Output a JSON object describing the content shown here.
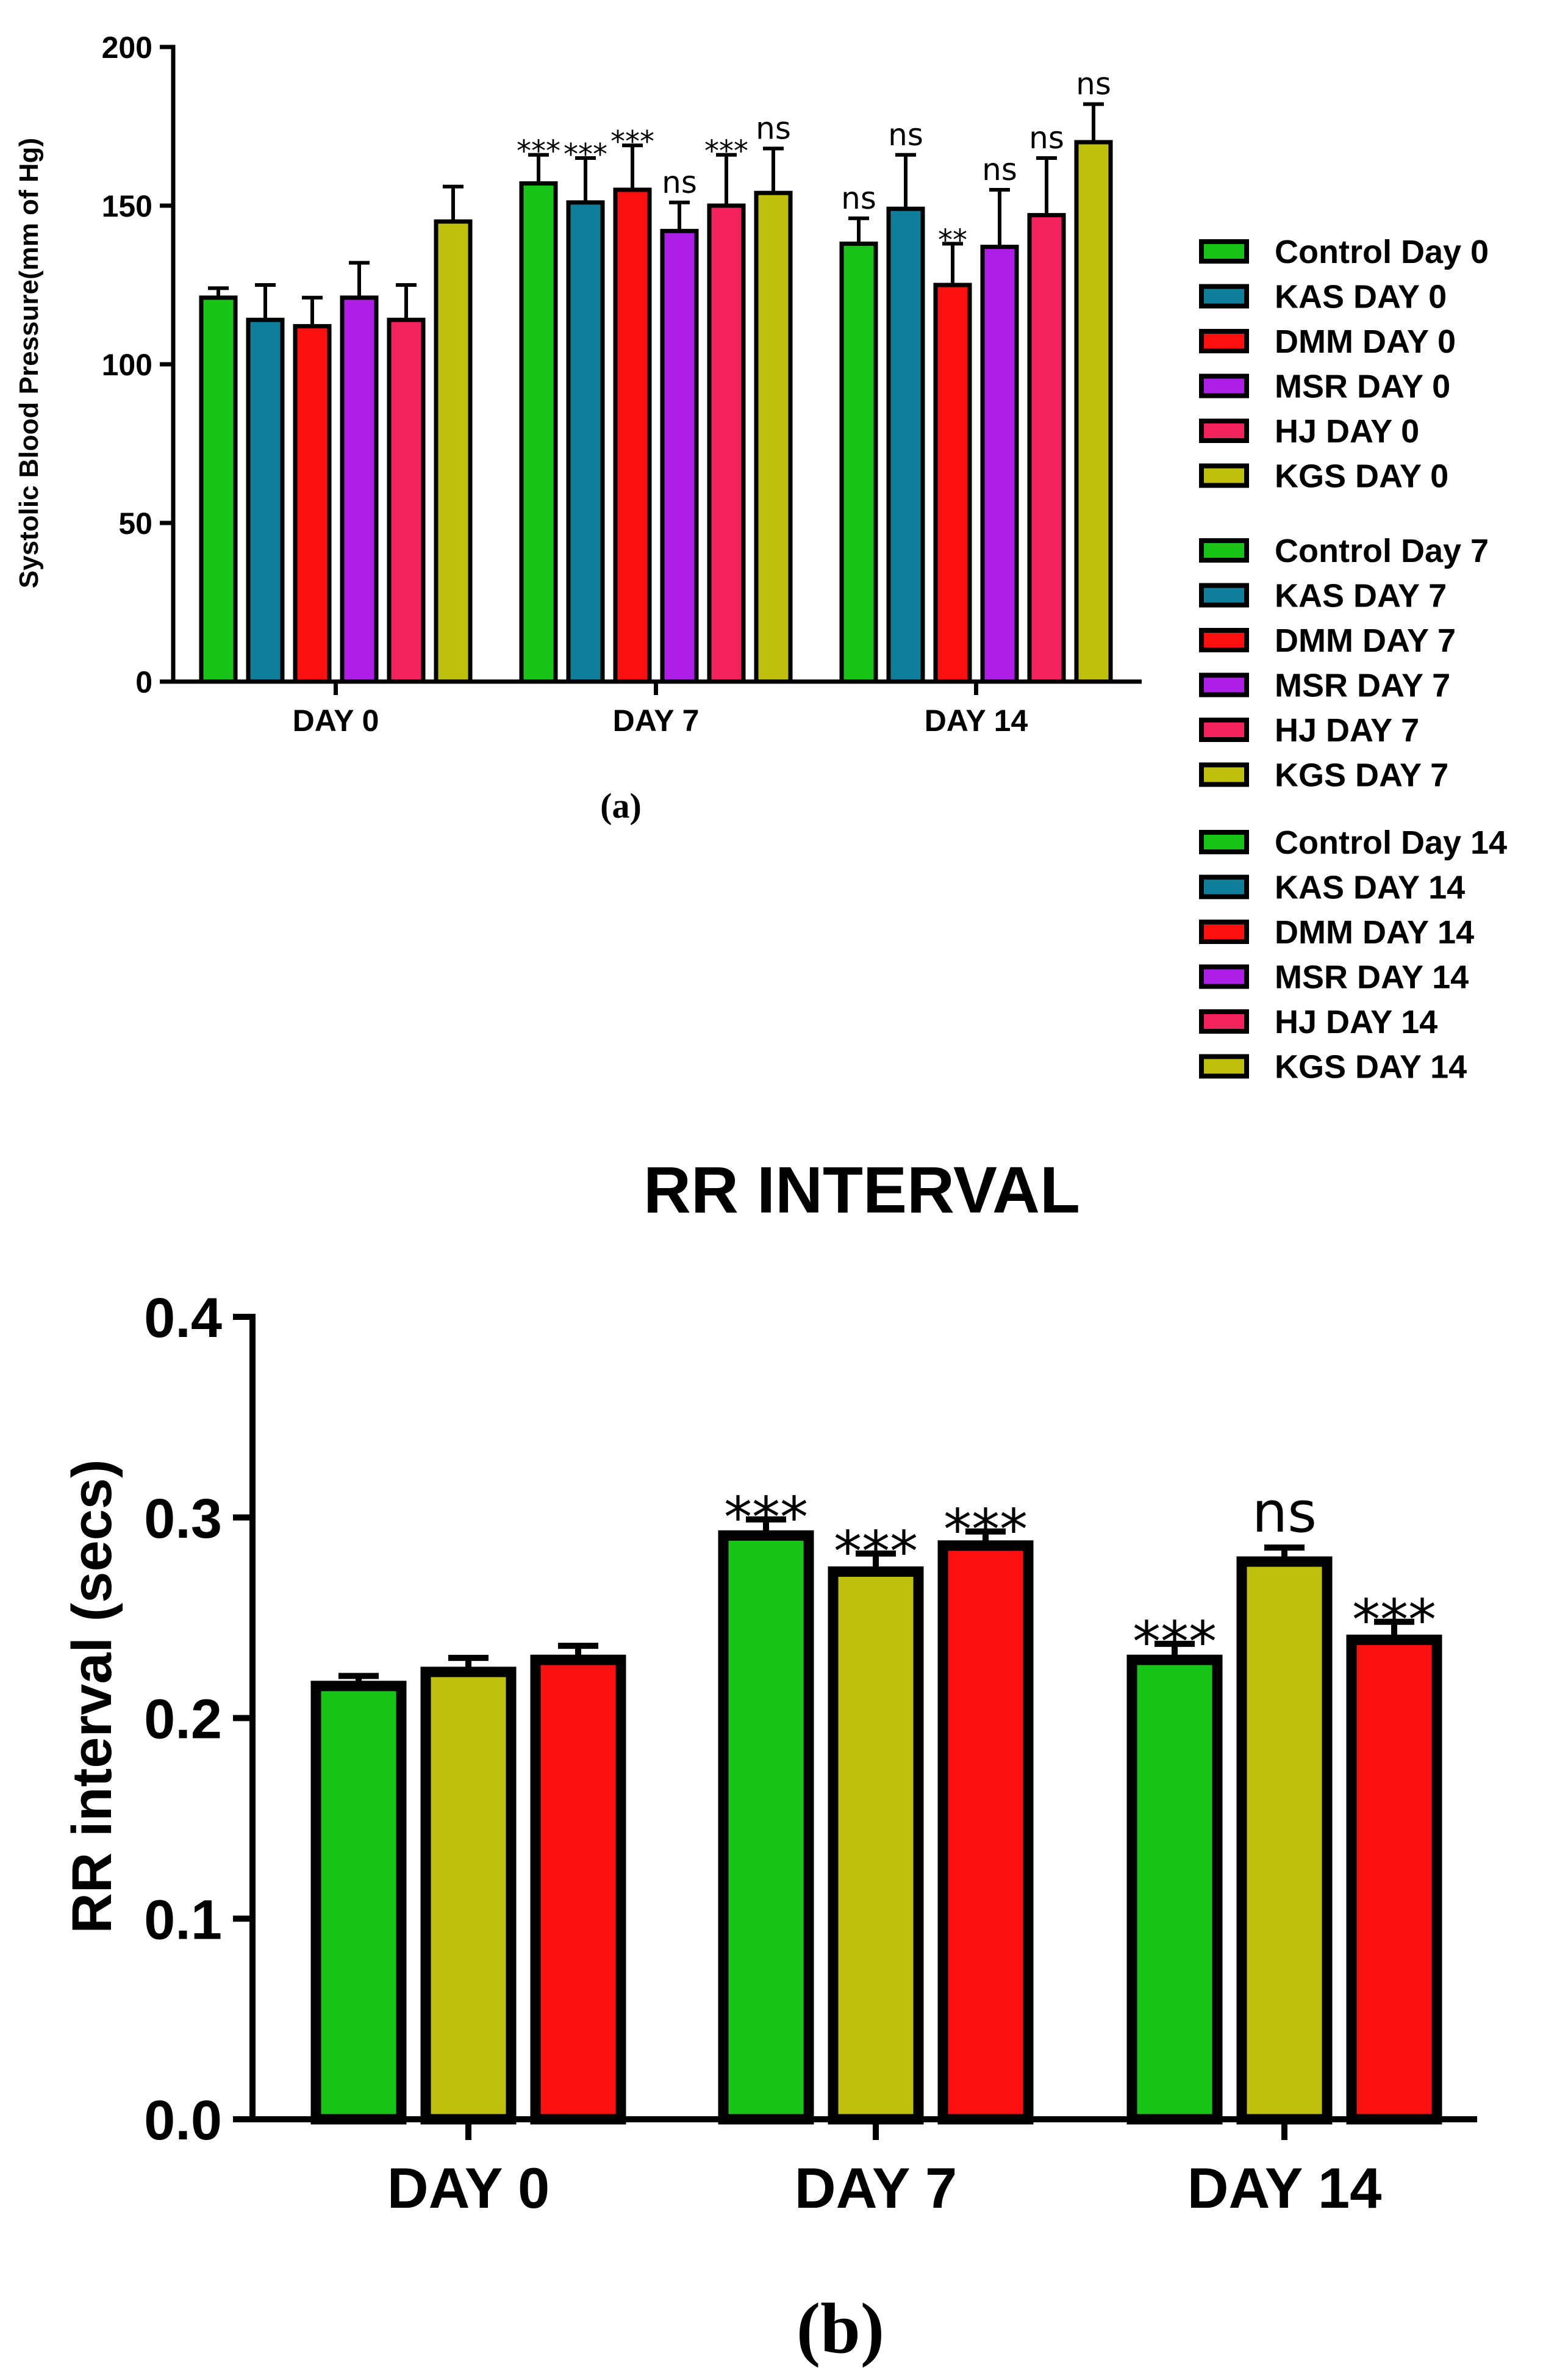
{
  "colors": {
    "green": "#18c418",
    "teal": "#0f7f9b",
    "red": "#fb0f0f",
    "purple": "#ad1fe6",
    "pink": "#f2235c",
    "olive": "#bfbf0d",
    "ink": "#000000"
  },
  "chart_data": [
    {
      "type": "bar",
      "caption": "(a)",
      "ylabel": "Systolic Blood Pressure(mm of Hg)",
      "ylim": [
        0,
        200
      ],
      "yticks": [
        "0",
        "50",
        "100",
        "150",
        "200"
      ],
      "categories": [
        "DAY 0",
        "DAY 7",
        "DAY 14"
      ],
      "groups": [
        {
          "label": "DAY 0",
          "bars": [
            {
              "color": "green",
              "value": 121,
              "err": 3,
              "sig": ""
            },
            {
              "color": "teal",
              "value": 114,
              "err": 11,
              "sig": ""
            },
            {
              "color": "red",
              "value": 112,
              "err": 9,
              "sig": ""
            },
            {
              "color": "purple",
              "value": 121,
              "err": 11,
              "sig": ""
            },
            {
              "color": "pink",
              "value": 114,
              "err": 11,
              "sig": ""
            },
            {
              "color": "olive",
              "value": 145,
              "err": 11,
              "sig": ""
            }
          ]
        },
        {
          "label": "DAY 7",
          "bars": [
            {
              "color": "green",
              "value": 157,
              "err": 9,
              "sig": "***"
            },
            {
              "color": "teal",
              "value": 151,
              "err": 14,
              "sig": "***"
            },
            {
              "color": "red",
              "value": 155,
              "err": 14,
              "sig": "***"
            },
            {
              "color": "purple",
              "value": 142,
              "err": 9,
              "sig": "ns"
            },
            {
              "color": "pink",
              "value": 150,
              "err": 16,
              "sig": "***"
            },
            {
              "color": "olive",
              "value": 154,
              "err": 14,
              "sig": "ns"
            }
          ]
        },
        {
          "label": "DAY 14",
          "bars": [
            {
              "color": "green",
              "value": 138,
              "err": 8,
              "sig": "ns"
            },
            {
              "color": "teal",
              "value": 149,
              "err": 17,
              "sig": "ns"
            },
            {
              "color": "red",
              "value": 125,
              "err": 13,
              "sig": "**"
            },
            {
              "color": "purple",
              "value": 137,
              "err": 18,
              "sig": "ns"
            },
            {
              "color": "pink",
              "value": 147,
              "err": 18,
              "sig": "ns"
            },
            {
              "color": "olive",
              "value": 170,
              "err": 12,
              "sig": "ns"
            }
          ]
        }
      ],
      "legend": [
        {
          "label": "Control Day 0",
          "color": "green"
        },
        {
          "label": "KAS DAY 0",
          "color": "teal"
        },
        {
          "label": "DMM DAY 0",
          "color": "red"
        },
        {
          "label": "MSR DAY 0",
          "color": "purple"
        },
        {
          "label": "HJ DAY 0",
          "color": "pink"
        },
        {
          "label": "KGS DAY 0",
          "color": "olive"
        },
        {
          "label": "Control Day 7",
          "color": "green"
        },
        {
          "label": "KAS DAY 7",
          "color": "teal"
        },
        {
          "label": "DMM DAY 7",
          "color": "red"
        },
        {
          "label": "MSR DAY 7",
          "color": "purple"
        },
        {
          "label": "HJ DAY 7",
          "color": "pink"
        },
        {
          "label": "KGS DAY 7",
          "color": "olive"
        },
        {
          "label": "Control Day 14",
          "color": "green"
        },
        {
          "label": "KAS DAY 14",
          "color": "teal"
        },
        {
          "label": "DMM DAY 14",
          "color": "red"
        },
        {
          "label": "MSR DAY 14",
          "color": "purple"
        },
        {
          "label": "HJ DAY 14",
          "color": "pink"
        },
        {
          "label": "KGS DAY 14",
          "color": "olive"
        }
      ],
      "legend_placement": "right"
    },
    {
      "type": "bar",
      "title": "RR INTERVAL",
      "caption": "(b)",
      "ylabel": "RR interval (secs)",
      "ylim": [
        0,
        0.4
      ],
      "yticks": [
        "0.0",
        "0.1",
        "0.2",
        "0.3",
        "0.4"
      ],
      "categories": [
        "DAY 0",
        "DAY 7",
        "DAY 14"
      ],
      "groups": [
        {
          "label": "DAY 0",
          "bars": [
            {
              "color": "green",
              "value": 0.216,
              "err": 0.005,
              "sig": ""
            },
            {
              "color": "olive",
              "value": 0.223,
              "err": 0.007,
              "sig": ""
            },
            {
              "color": "red",
              "value": 0.229,
              "err": 0.007,
              "sig": ""
            }
          ]
        },
        {
          "label": "DAY 7",
          "bars": [
            {
              "color": "green",
              "value": 0.291,
              "err": 0.008,
              "sig": "***"
            },
            {
              "color": "olive",
              "value": 0.273,
              "err": 0.009,
              "sig": "***"
            },
            {
              "color": "red",
              "value": 0.286,
              "err": 0.007,
              "sig": "***"
            }
          ]
        },
        {
          "label": "DAY 14",
          "bars": [
            {
              "color": "green",
              "value": 0.229,
              "err": 0.008,
              "sig": "***"
            },
            {
              "color": "olive",
              "value": 0.278,
              "err": 0.007,
              "sig": "ns"
            },
            {
              "color": "red",
              "value": 0.239,
              "err": 0.009,
              "sig": "***"
            }
          ]
        }
      ]
    }
  ]
}
